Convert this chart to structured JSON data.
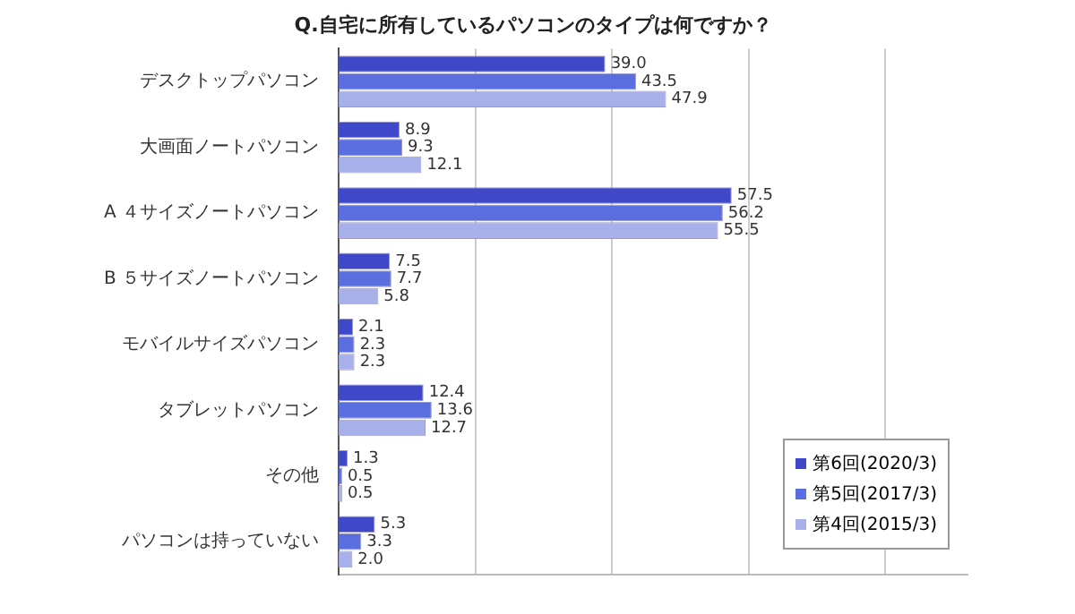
{
  "chart_data": {
    "type": "bar",
    "orientation": "horizontal",
    "title": "Q.自宅に所有しているパソコンのタイプは何ですか？",
    "categories": [
      "デスクトップパソコン",
      "大画面ノートパソコン",
      "A ４サイズノートパソコン",
      "B ５サイズノートパソコン",
      "モバイルサイズパソコン",
      "タブレットパソコン",
      "その他",
      "パソコンは持っていない"
    ],
    "series": [
      {
        "name": "第6回(2020/3)",
        "color": "#3f48c8",
        "values": [
          39.0,
          8.9,
          57.5,
          7.5,
          2.1,
          12.4,
          1.3,
          5.3
        ],
        "value_labels": [
          "39.0",
          "8.9",
          "57.5",
          "7.5",
          "2.1",
          "12.4",
          "1.3",
          "5.3"
        ]
      },
      {
        "name": "第5回(2017/3)",
        "color": "#5a6ee0",
        "values": [
          43.5,
          9.3,
          56.2,
          7.7,
          2.3,
          13.6,
          0.5,
          3.3
        ],
        "value_labels": [
          "43.5",
          "9.3",
          "56.2",
          "7.7",
          "2.3",
          "13.6",
          "0.5",
          "3.3"
        ]
      },
      {
        "name": "第4回(2015/3)",
        "color": "#a8b0ea",
        "values": [
          47.9,
          12.1,
          55.5,
          5.8,
          2.3,
          12.7,
          0.5,
          2.0
        ],
        "value_labels": [
          "47.9",
          "12.1",
          "55.5",
          "5.8",
          "2.3",
          "12.7",
          "0.5",
          "2.0"
        ]
      }
    ],
    "xlim": [
      0,
      92
    ],
    "xticks": [
      {
        "value": 20,
        "label": null
      },
      {
        "value": 40,
        "label": null
      },
      {
        "value": 60,
        "label": null
      },
      {
        "value": 80,
        "label": null
      }
    ],
    "tick_labels": "y",
    "grid": "x",
    "legend": "bottom right"
  }
}
